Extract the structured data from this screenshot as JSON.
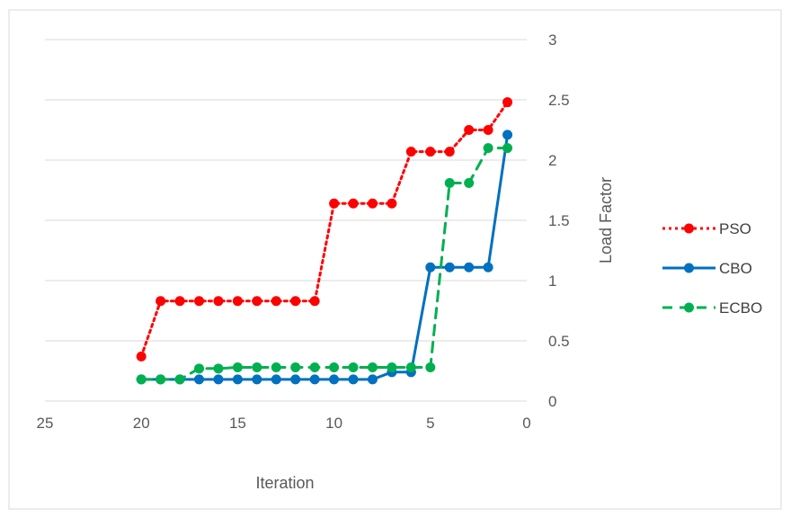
{
  "chart_data": {
    "type": "line",
    "title": "",
    "xlabel": "Iteration",
    "ylabel": "Load Factor",
    "x_reversed": true,
    "xlim": [
      0,
      25
    ],
    "ylim": [
      0,
      3
    ],
    "xticks": [
      "25",
      "20",
      "15",
      "10",
      "5",
      "0"
    ],
    "yticks": [
      "0",
      "0.5",
      "1",
      "1.5",
      "2",
      "2.5",
      "3"
    ],
    "grid": "horizontal",
    "legend_position": "right",
    "x": [
      20,
      19,
      18,
      17,
      16,
      15,
      14,
      13,
      12,
      11,
      10,
      9,
      8,
      7,
      6,
      5,
      4,
      3,
      2,
      1
    ],
    "series": [
      {
        "name": "PSO",
        "color": "#FF0000",
        "line_style": "dotted",
        "values": [
          0.37,
          0.83,
          0.83,
          0.83,
          0.83,
          0.83,
          0.83,
          0.83,
          0.83,
          0.83,
          1.64,
          1.64,
          1.64,
          1.64,
          2.07,
          2.07,
          2.07,
          2.25,
          2.25,
          2.48
        ]
      },
      {
        "name": "CBO",
        "color": "#0070C0",
        "line_style": "solid",
        "values": [
          0.18,
          0.18,
          0.18,
          0.18,
          0.18,
          0.18,
          0.18,
          0.18,
          0.18,
          0.18,
          0.18,
          0.18,
          0.18,
          0.24,
          0.24,
          1.11,
          1.11,
          1.11,
          1.11,
          2.21
        ]
      },
      {
        "name": "ECBO",
        "color": "#00B050",
        "line_style": "dashed",
        "values": [
          0.18,
          0.18,
          0.18,
          0.27,
          0.27,
          0.28,
          0.28,
          0.28,
          0.28,
          0.28,
          0.28,
          0.28,
          0.28,
          0.28,
          0.28,
          0.28,
          1.81,
          1.81,
          2.1,
          2.1
        ]
      }
    ]
  }
}
